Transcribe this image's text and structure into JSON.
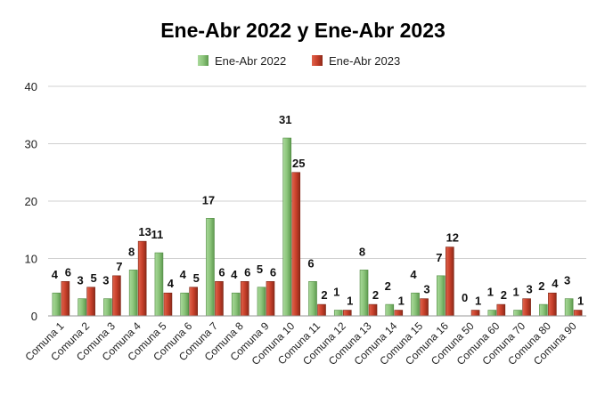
{
  "chart_data": {
    "type": "bar",
    "title": "Ene-Abr 2022 y Ene-Abr 2023",
    "xlabel": "",
    "ylabel": "",
    "ylim": [
      0,
      40
    ],
    "yticks": [
      0,
      10,
      20,
      30,
      40
    ],
    "grid": true,
    "legend_position": "top",
    "categories": [
      "Comuna 1",
      "Comuna 2",
      "Comuna 3",
      "Comuna 4",
      "Comuna 5",
      "Comuna 6",
      "Comuna 7",
      "Comuna 8",
      "Comuna 9",
      "Comuna 10",
      "Comuna 11",
      "Comuna 12",
      "Comuna 13",
      "Comuna 14",
      "Comuna 15",
      "Comuna 16",
      "Comuna 50",
      "Comuna 60",
      "Comuna 70",
      "Comuna 80",
      "Comuna 90"
    ],
    "series": [
      {
        "name": "Ene-Abr 2022",
        "color": "#8bc47a",
        "values": [
          4,
          3,
          3,
          8,
          11,
          4,
          17,
          4,
          5,
          31,
          6,
          1,
          8,
          2,
          4,
          7,
          0,
          1,
          1,
          2,
          3
        ]
      },
      {
        "name": "Ene-Abr 2023",
        "color": "#c8402b",
        "values": [
          6,
          5,
          7,
          13,
          4,
          5,
          6,
          6,
          6,
          25,
          2,
          1,
          2,
          1,
          3,
          12,
          1,
          2,
          3,
          4,
          1
        ]
      }
    ]
  }
}
